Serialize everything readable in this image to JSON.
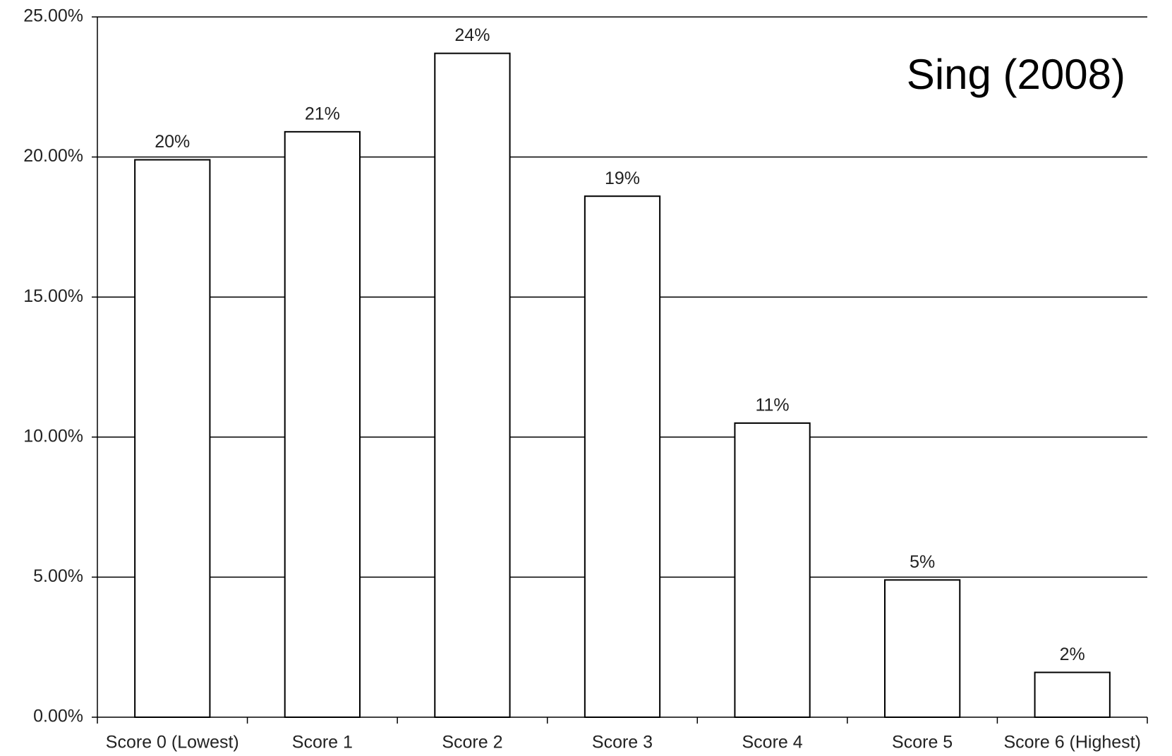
{
  "chart_data": {
    "type": "bar",
    "annotation": "Sing (2008)",
    "categories": [
      "Score 0 (Lowest)",
      "Score 1",
      "Score 2",
      "Score 3",
      "Score 4",
      "Score 5",
      "Score 6 (Highest)"
    ],
    "values": [
      19.9,
      20.9,
      23.7,
      18.6,
      10.5,
      4.9,
      1.6
    ],
    "value_labels": [
      "20%",
      "21%",
      "24%",
      "19%",
      "11%",
      "5%",
      "2%"
    ],
    "color": "#ffffff",
    "ylim": [
      0,
      25
    ],
    "yticks": [
      {
        "value": 0,
        "label": "0.00%"
      },
      {
        "value": 5,
        "label": "5.00%"
      },
      {
        "value": 10,
        "label": "10.00%"
      },
      {
        "value": 15,
        "label": "15.00%"
      },
      {
        "value": 20,
        "label": "20.00%"
      },
      {
        "value": 25,
        "label": "25.00%"
      }
    ],
    "grid": true
  }
}
